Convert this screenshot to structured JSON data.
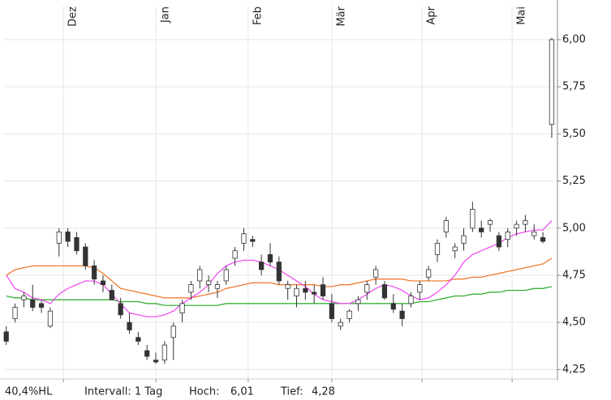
{
  "chart_data": {
    "type": "candlestick",
    "x": [
      0,
      2,
      4,
      6,
      8,
      10,
      12,
      14,
      16,
      18,
      20,
      22,
      24,
      26,
      28,
      30,
      32,
      34,
      36,
      38,
      40,
      42,
      44,
      46,
      48,
      50,
      52,
      54,
      56,
      58,
      60,
      62,
      64,
      66,
      68,
      70,
      72,
      74,
      76,
      78,
      80,
      82,
      84,
      86,
      88,
      90,
      92,
      94,
      96,
      98,
      100,
      102,
      104,
      106,
      108,
      110,
      112,
      114,
      116,
      118,
      120,
      122,
      124
    ],
    "open": [
      4.45,
      4.52,
      4.62,
      4.62,
      4.6,
      4.48,
      4.92,
      4.98,
      4.95,
      4.9,
      4.8,
      4.72,
      4.67,
      4.6,
      4.5,
      4.42,
      4.35,
      4.3,
      4.3,
      4.42,
      4.55,
      4.66,
      4.72,
      4.7,
      4.68,
      4.72,
      4.84,
      4.92,
      4.94,
      4.82,
      4.86,
      4.82,
      4.68,
      4.64,
      4.68,
      4.66,
      4.7,
      4.6,
      4.48,
      4.52,
      4.6,
      4.66,
      4.74,
      4.7,
      4.6,
      4.56,
      4.6,
      4.66,
      4.74,
      4.86,
      4.98,
      4.88,
      4.92,
      5.0,
      5.0,
      5.02,
      4.96,
      4.94,
      5.0,
      5.02,
      4.96,
      4.95,
      5.55
    ],
    "high": [
      4.48,
      4.6,
      4.66,
      4.7,
      4.62,
      4.58,
      5.0,
      5.0,
      4.98,
      4.92,
      4.83,
      4.75,
      4.7,
      4.63,
      4.55,
      4.45,
      4.38,
      4.34,
      4.4,
      4.5,
      4.62,
      4.72,
      4.8,
      4.75,
      4.72,
      4.8,
      4.9,
      5.0,
      4.96,
      4.86,
      4.92,
      4.85,
      4.72,
      4.7,
      4.72,
      4.7,
      4.74,
      4.65,
      4.52,
      4.57,
      4.64,
      4.72,
      4.8,
      4.72,
      4.65,
      4.6,
      4.66,
      4.72,
      4.8,
      4.94,
      5.06,
      4.92,
      5.0,
      5.14,
      5.04,
      5.05,
      4.98,
      5.0,
      5.04,
      5.07,
      5.02,
      4.98,
      6.01
    ],
    "low": [
      4.38,
      4.5,
      4.58,
      4.56,
      4.55,
      4.47,
      4.85,
      4.9,
      4.86,
      4.78,
      4.7,
      4.66,
      4.62,
      4.52,
      4.44,
      4.38,
      4.3,
      4.28,
      4.28,
      4.3,
      4.5,
      4.62,
      4.68,
      4.66,
      4.63,
      4.7,
      4.8,
      4.88,
      4.9,
      4.75,
      4.8,
      4.7,
      4.62,
      4.58,
      4.62,
      4.6,
      4.62,
      4.5,
      4.46,
      4.5,
      4.56,
      4.62,
      4.7,
      4.62,
      4.55,
      4.48,
      4.58,
      4.62,
      4.72,
      4.82,
      4.95,
      4.84,
      4.88,
      4.98,
      4.95,
      4.98,
      4.88,
      4.9,
      4.96,
      4.98,
      4.94,
      4.92,
      5.48
    ],
    "close": [
      4.4,
      4.58,
      4.64,
      4.58,
      4.58,
      4.56,
      4.98,
      4.93,
      4.88,
      4.8,
      4.73,
      4.7,
      4.62,
      4.54,
      4.46,
      4.4,
      4.32,
      4.29,
      4.38,
      4.48,
      4.6,
      4.7,
      4.78,
      4.72,
      4.7,
      4.78,
      4.88,
      4.97,
      4.93,
      4.78,
      4.82,
      4.72,
      4.7,
      4.68,
      4.66,
      4.65,
      4.64,
      4.52,
      4.5,
      4.56,
      4.62,
      4.7,
      4.78,
      4.63,
      4.57,
      4.52,
      4.64,
      4.7,
      4.78,
      4.92,
      5.04,
      4.9,
      4.96,
      5.1,
      4.98,
      5.04,
      4.9,
      4.98,
      5.02,
      5.04,
      4.98,
      4.93,
      6.0
    ],
    "series": [
      {
        "color": "#22aa22",
        "values": [
          4.64,
          4.63,
          4.63,
          4.62,
          4.62,
          4.62,
          4.62,
          4.62,
          4.62,
          4.62,
          4.62,
          4.62,
          4.62,
          4.61,
          4.61,
          4.61,
          4.6,
          4.6,
          4.59,
          4.59,
          4.59,
          4.59,
          4.59,
          4.59,
          4.59,
          4.6,
          4.6,
          4.6,
          4.6,
          4.6,
          4.6,
          4.6,
          4.6,
          4.6,
          4.6,
          4.6,
          4.6,
          4.6,
          4.6,
          4.6,
          4.6,
          4.6,
          4.6,
          4.6,
          4.6,
          4.6,
          4.6,
          4.61,
          4.61,
          4.62,
          4.63,
          4.64,
          4.64,
          4.65,
          4.65,
          4.66,
          4.66,
          4.67,
          4.67,
          4.67,
          4.68,
          4.68,
          4.69
        ]
      },
      {
        "color": "#f07020",
        "values": [
          4.75,
          4.78,
          4.79,
          4.8,
          4.8,
          4.8,
          4.8,
          4.8,
          4.8,
          4.8,
          4.79,
          4.76,
          4.72,
          4.68,
          4.67,
          4.66,
          4.65,
          4.64,
          4.63,
          4.63,
          4.63,
          4.63,
          4.64,
          4.65,
          4.66,
          4.68,
          4.69,
          4.7,
          4.71,
          4.71,
          4.71,
          4.7,
          4.7,
          4.7,
          4.7,
          4.7,
          4.69,
          4.69,
          4.7,
          4.7,
          4.71,
          4.72,
          4.73,
          4.73,
          4.73,
          4.73,
          4.72,
          4.72,
          4.72,
          4.72,
          4.72,
          4.73,
          4.73,
          4.74,
          4.74,
          4.75,
          4.76,
          4.77,
          4.78,
          4.79,
          4.8,
          4.81,
          4.84
        ]
      },
      {
        "color": "#ee44ee",
        "values": [
          4.75,
          4.68,
          4.66,
          4.63,
          4.62,
          4.6,
          4.65,
          4.68,
          4.7,
          4.72,
          4.72,
          4.7,
          4.65,
          4.6,
          4.55,
          4.54,
          4.53,
          4.53,
          4.54,
          4.56,
          4.6,
          4.63,
          4.66,
          4.7,
          4.76,
          4.8,
          4.82,
          4.83,
          4.83,
          4.82,
          4.8,
          4.78,
          4.75,
          4.72,
          4.69,
          4.65,
          4.62,
          4.61,
          4.6,
          4.6,
          4.62,
          4.65,
          4.68,
          4.7,
          4.69,
          4.67,
          4.64,
          4.62,
          4.63,
          4.66,
          4.7,
          4.75,
          4.82,
          4.86,
          4.88,
          4.9,
          4.92,
          4.95,
          4.97,
          4.98,
          4.99,
          4.99,
          5.04
        ]
      }
    ],
    "up_color": "#ffffff",
    "down_color": "#333333",
    "xlim": [
      -0.5,
      125.3
    ],
    "xticks": [
      {
        "value": 13,
        "label": "Dez"
      },
      {
        "value": 34,
        "label": "Jan"
      },
      {
        "value": 55,
        "label": "Feb"
      },
      {
        "value": 74,
        "label": "Mär"
      },
      {
        "value": 94.5,
        "label": "Apr"
      },
      {
        "value": 115,
        "label": "Mai"
      }
    ],
    "ylim": [
      4.2,
      6.09
    ],
    "yticks": [
      {
        "value": 4.25,
        "label": "4,25"
      },
      {
        "value": 4.5,
        "label": "4,50"
      },
      {
        "value": 4.75,
        "label": "4,75"
      },
      {
        "value": 5,
        "label": "5,00"
      },
      {
        "value": 5.25,
        "label": "5,25"
      },
      {
        "value": 5.5,
        "label": "5,50"
      },
      {
        "value": 5.75,
        "label": "5,75"
      },
      {
        "value": 6,
        "label": "6,00"
      }
    ],
    "grid": true
  },
  "footer": {
    "range": "40,4%HL",
    "interval": "Intervall: 1 Tag",
    "high_label": "Hoch:",
    "high": "6,01",
    "low_label": "Tief:",
    "low": "4,28"
  }
}
